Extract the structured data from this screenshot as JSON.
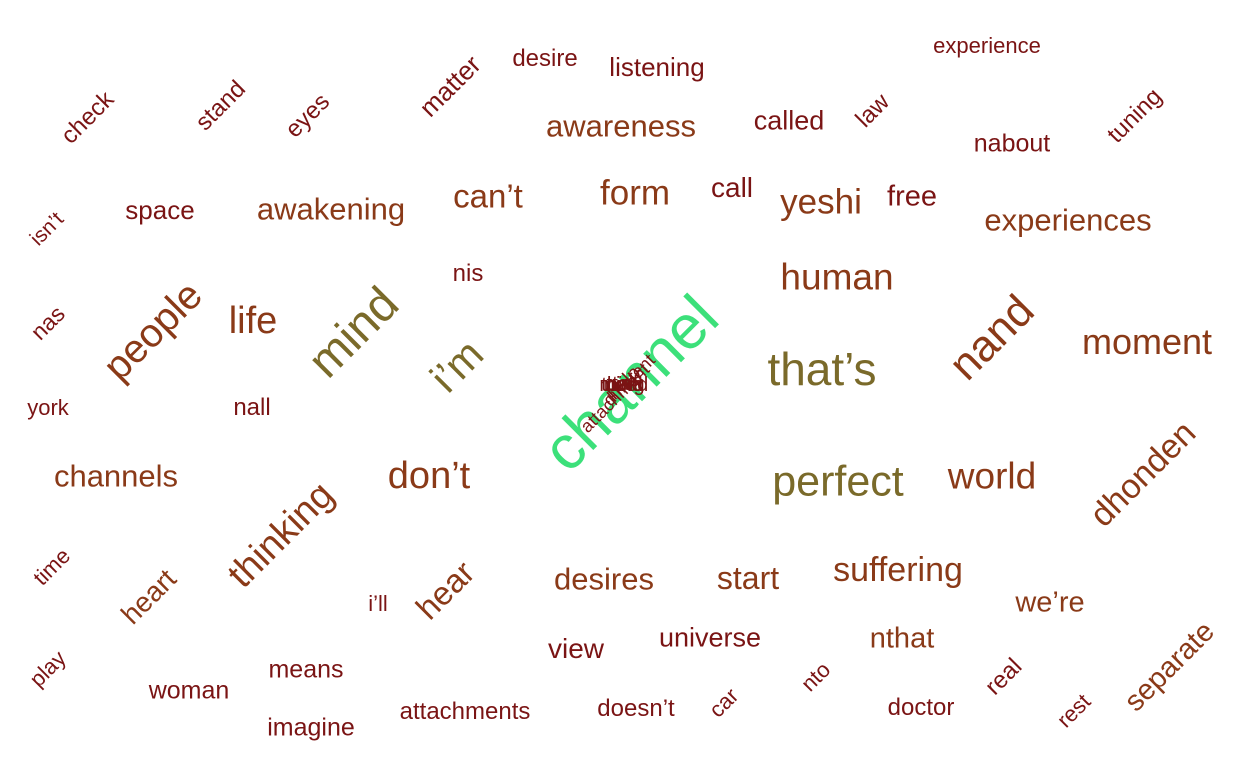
{
  "palette": {
    "dark_red": "#7a1414",
    "brown": "#8a3a18",
    "olive": "#7a6a2a",
    "highlight_green": "#3ce07a"
  },
  "words": [
    {
      "text": "experience",
      "color": "dark_red"
    },
    {
      "text": "desire",
      "color": "dark_red"
    },
    {
      "text": "listening",
      "color": "dark_red"
    },
    {
      "text": "matter",
      "color": "dark_red"
    },
    {
      "text": "check",
      "color": "dark_red"
    },
    {
      "text": "stand",
      "color": "dark_red"
    },
    {
      "text": "eyes",
      "color": "dark_red"
    },
    {
      "text": "awareness",
      "color": "brown"
    },
    {
      "text": "called",
      "color": "dark_red"
    },
    {
      "text": "law",
      "color": "dark_red"
    },
    {
      "text": "nabout",
      "color": "dark_red"
    },
    {
      "text": "tuning",
      "color": "dark_red"
    },
    {
      "text": "isn’t",
      "color": "dark_red"
    },
    {
      "text": "space",
      "color": "dark_red"
    },
    {
      "text": "awakening",
      "color": "brown"
    },
    {
      "text": "can’t",
      "color": "brown"
    },
    {
      "text": "form",
      "color": "brown"
    },
    {
      "text": "call",
      "color": "dark_red"
    },
    {
      "text": "yeshi",
      "color": "brown"
    },
    {
      "text": "free",
      "color": "dark_red"
    },
    {
      "text": "experiences",
      "color": "brown"
    },
    {
      "text": "nis",
      "color": "dark_red"
    },
    {
      "text": "human",
      "color": "brown"
    },
    {
      "text": "nas",
      "color": "dark_red"
    },
    {
      "text": "people",
      "color": "brown"
    },
    {
      "text": "life",
      "color": "brown"
    },
    {
      "text": "mind",
      "color": "olive"
    },
    {
      "text": "i’m",
      "color": "olive"
    },
    {
      "text": "channel",
      "color": "highlight_green"
    },
    {
      "text": "that’s",
      "color": "olive"
    },
    {
      "text": "nand",
      "color": "brown"
    },
    {
      "text": "moment",
      "color": "brown"
    },
    {
      "text": "york",
      "color": "dark_red"
    },
    {
      "text": "nall",
      "color": "dark_red"
    },
    {
      "text": "channels",
      "color": "brown"
    },
    {
      "text": "don’t",
      "color": "brown"
    },
    {
      "text": "perfect",
      "color": "olive"
    },
    {
      "text": "world",
      "color": "brown"
    },
    {
      "text": "dhonden",
      "color": "brown"
    },
    {
      "text": "time",
      "color": "dark_red"
    },
    {
      "text": "heart",
      "color": "brown"
    },
    {
      "text": "thinking",
      "color": "brown"
    },
    {
      "text": "i’ll",
      "color": "dark_red"
    },
    {
      "text": "hear",
      "color": "brown"
    },
    {
      "text": "desires",
      "color": "brown"
    },
    {
      "text": "start",
      "color": "brown"
    },
    {
      "text": "suffering",
      "color": "brown"
    },
    {
      "text": "we’re",
      "color": "brown"
    },
    {
      "text": "view",
      "color": "dark_red"
    },
    {
      "text": "universe",
      "color": "dark_red"
    },
    {
      "text": "nthat",
      "color": "brown"
    },
    {
      "text": "play",
      "color": "dark_red"
    },
    {
      "text": "means",
      "color": "dark_red"
    },
    {
      "text": "woman",
      "color": "dark_red"
    },
    {
      "text": "imagine",
      "color": "dark_red"
    },
    {
      "text": "attachments",
      "color": "dark_red"
    },
    {
      "text": "doesn’t",
      "color": "dark_red"
    },
    {
      "text": "car",
      "color": "dark_red"
    },
    {
      "text": "nto",
      "color": "dark_red"
    },
    {
      "text": "doctor",
      "color": "dark_red"
    },
    {
      "text": "real",
      "color": "dark_red"
    },
    {
      "text": "rest",
      "color": "dark_red"
    },
    {
      "text": "separate",
      "color": "brown"
    },
    {
      "text": "thing",
      "color": "dark_red"
    },
    {
      "text": "mind",
      "color": "dark_red"
    },
    {
      "text": "need",
      "color": "dark_red"
    },
    {
      "text": "help",
      "color": "dark_red"
    },
    {
      "text": "ttalk",
      "color": "dark_red"
    },
    {
      "text": "attachment",
      "color": "dark_red"
    },
    {
      "text": "different",
      "color": "dark_red"
    }
  ]
}
